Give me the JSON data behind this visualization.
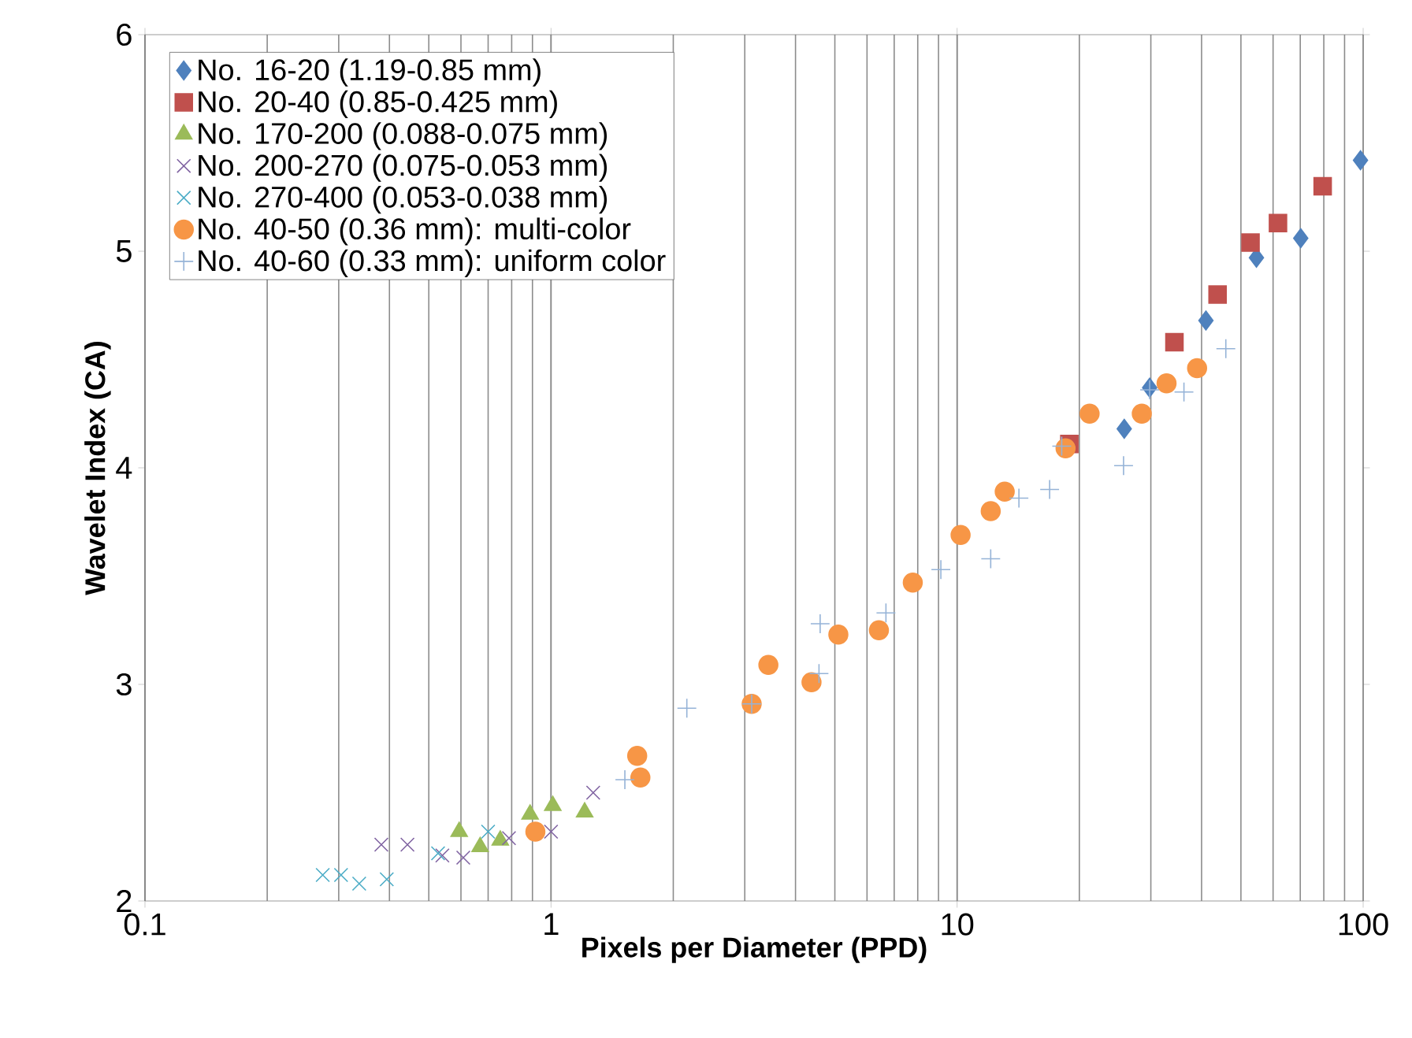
{
  "chart_data": {
    "type": "scatter",
    "xlabel": "Pixels per Diameter (PPD)",
    "ylabel": "Wavelet Index (CA)",
    "log": "x",
    "grid": "x",
    "legend": "top left",
    "xlim": [
      0.1,
      100
    ],
    "xticks": [
      0.1,
      1,
      10,
      100
    ],
    "ylim": [
      2,
      6
    ],
    "yticks": [
      2,
      3,
      4,
      5,
      6
    ],
    "series": [
      {
        "name": "No. 16-20 (1.19-0.85 mm)",
        "color": "#4f81bd",
        "marker": "diamond",
        "x": [
          25.8,
          29.8,
          41.0,
          54.6,
          70.2,
          98.5
        ],
        "values": [
          4.18,
          4.37,
          4.68,
          4.97,
          5.06,
          5.42
        ]
      },
      {
        "name": "No. 20-40 (0.85-0.425 mm)",
        "color": "#c0504d",
        "marker": "square",
        "x": [
          18.9,
          34.3,
          43.8,
          52.8,
          61.7,
          79.5
        ],
        "values": [
          4.11,
          4.58,
          4.8,
          5.04,
          5.13,
          5.3
        ]
      },
      {
        "name": "No. 170-200 (0.088-0.075 mm)",
        "color": "#9bbb59",
        "marker": "triangle",
        "x": [
          0.594,
          0.669,
          0.75,
          0.888,
          1.01,
          1.21
        ],
        "values": [
          2.32,
          2.25,
          2.28,
          2.4,
          2.44,
          2.41
        ]
      },
      {
        "name": "No. 200-270 (0.075-0.053 mm)",
        "color": "#8064a2",
        "marker": "cross",
        "x": [
          0.382,
          0.443,
          0.54,
          0.608,
          0.788,
          1.0,
          1.27
        ],
        "values": [
          2.26,
          2.26,
          2.21,
          2.2,
          2.29,
          2.32,
          2.5
        ]
      },
      {
        "name": "No. 270-400 (0.053-0.038 mm)",
        "color": "#4bacc6",
        "marker": "cross",
        "x": [
          0.274,
          0.304,
          0.337,
          0.394,
          0.527,
          0.7
        ],
        "values": [
          2.12,
          2.12,
          2.08,
          2.1,
          2.22,
          2.32
        ]
      },
      {
        "name": "No. 40-50 (0.36 mm): multi-color",
        "color": "#f79646",
        "marker": "circle",
        "x": [
          0.915,
          1.63,
          1.66,
          3.12,
          3.43,
          4.38,
          5.1,
          6.42,
          7.78,
          10.2,
          12.1,
          13.1,
          18.5,
          21.2,
          28.5,
          32.8,
          39.0
        ],
        "values": [
          2.32,
          2.67,
          2.57,
          2.91,
          3.09,
          3.01,
          3.23,
          3.25,
          3.47,
          3.69,
          3.8,
          3.89,
          4.09,
          4.25,
          4.25,
          4.39,
          4.46
        ]
      },
      {
        "name": "No. 40-60 (0.33 mm): uniform color",
        "color": "#95b3d7",
        "marker": "plus",
        "x": [
          1.52,
          2.16,
          3.12,
          4.57,
          4.6,
          6.68,
          9.12,
          12.1,
          14.2,
          16.9,
          18.1,
          25.7,
          29.8,
          36.2,
          45.9
        ],
        "values": [
          2.56,
          2.89,
          2.91,
          3.05,
          3.28,
          3.33,
          3.53,
          3.58,
          3.86,
          3.9,
          4.1,
          4.01,
          4.36,
          4.35,
          4.55
        ]
      }
    ]
  }
}
